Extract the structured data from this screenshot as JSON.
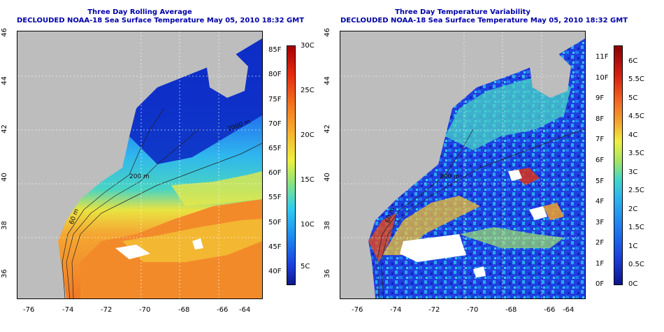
{
  "left": {
    "title": "Three Day Rolling Average",
    "subtitle": "DECLOUDED NOAA-18 Sea Surface Temperature May 05, 2010 18:32 GMT",
    "colorbar_left_labels": [
      "85F",
      "80F",
      "75F",
      "70F",
      "65F",
      "60F",
      "55F",
      "50F",
      "45F",
      "40F"
    ],
    "colorbar_right_labels": [
      "30C",
      "25C",
      "20C",
      "15C",
      "10C",
      "5C"
    ],
    "contour_labels": [
      "2000 m",
      "200 m",
      "60 m"
    ]
  },
  "right": {
    "title": "Three Day Temperature Variability",
    "subtitle": "DECLOUDED NOAA-18 Sea Surface Temperature May 05, 2010 18:32 GMT",
    "colorbar_left_labels": [
      "11F",
      "10F",
      "9F",
      "8F",
      "7F",
      "6F",
      "5F",
      "4F",
      "3F",
      "2F",
      "1F",
      "0F"
    ],
    "colorbar_right_labels": [
      "6C",
      "5.5C",
      "5C",
      "4.5C",
      "4C",
      "3.5C",
      "3C",
      "2.5C",
      "2C",
      "1.5C",
      "1C",
      "0.5C",
      "0C"
    ],
    "contour_labels": [
      "200 m",
      "60 m"
    ]
  },
  "axes": {
    "x_ticks": [
      "-76",
      "-74",
      "-72",
      "-70",
      "-68",
      "-66",
      "-64"
    ],
    "y_ticks": [
      "36",
      "38",
      "40",
      "42",
      "44",
      "46"
    ]
  },
  "colors": {
    "title": "#0000a8",
    "land": "#bdbdbd",
    "cloud": "#ffffff"
  }
}
